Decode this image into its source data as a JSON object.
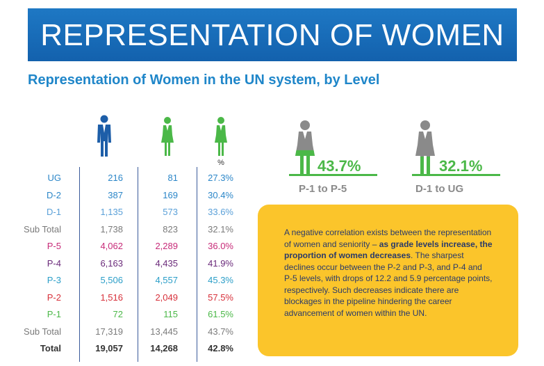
{
  "banner": {
    "title": "REPRESENTATION OF WOMEN"
  },
  "subtitle": "Representation of Women in the UN system, by Level",
  "chart_data": {
    "type": "table",
    "title": "Representation of Women in the UN system, by Level",
    "header": {
      "col3": "%"
    },
    "rows": [
      {
        "level": "UG",
        "men": "216",
        "women": "81",
        "pct": "27.3%",
        "color": "#2b86c8"
      },
      {
        "level": "D-2",
        "men": "387",
        "women": "169",
        "pct": "30.4%",
        "color": "#2b86c8"
      },
      {
        "level": "D-1",
        "men": "1,135",
        "women": "573",
        "pct": "33.6%",
        "color": "#5aa0d8"
      },
      {
        "level": "Sub Total",
        "men": "1,738",
        "women": "823",
        "pct": "32.1%",
        "color": "#7a7a7a"
      },
      {
        "level": "P-5",
        "men": "4,062",
        "women": "2,289",
        "pct": "36.0%",
        "color": "#c72a78"
      },
      {
        "level": "P-4",
        "men": "6,163",
        "women": "4,435",
        "pct": "41.9%",
        "color": "#6a2a7a"
      },
      {
        "level": "P-3",
        "men": "5,506",
        "women": "4,557",
        "pct": "45.3%",
        "color": "#2b9ec8"
      },
      {
        "level": "P-2",
        "men": "1,516",
        "women": "2,049",
        "pct": "57.5%",
        "color": "#d7303a"
      },
      {
        "level": "P-1",
        "men": "72",
        "women": "115",
        "pct": "61.5%",
        "color": "#4bb848"
      },
      {
        "level": "Sub Total",
        "men": "17,319",
        "women": "13,445",
        "pct": "43.7%",
        "color": "#7a7a7a"
      },
      {
        "level": "Total",
        "men": "19,057",
        "women": "14,268",
        "pct": "42.8%",
        "color": "#333333",
        "bold": true
      }
    ]
  },
  "highlights": [
    {
      "value": "43.7%",
      "label": "P-1 to P-5",
      "fill_fraction": 0.437
    },
    {
      "value": "32.1%",
      "label": "D-1 to UG",
      "fill_fraction": 0.321
    }
  ],
  "note": {
    "part1": "A negative correlation exists between the representation of women and seniority – ",
    "bold": "as grade levels increase, the proportion of women decreases",
    "part2": ". The sharpest declines occur between the P-2 and P-3, and P-4 and P-5 levels, with drops of 12.2 and 5.9 percentage points, respectively. Such decreases indicate there are blockages in the pipeline hindering the career advancement of women within the UN."
  },
  "colors": {
    "banner": "#1668b3",
    "accent_blue": "#1f86c9",
    "accent_green": "#4bb848",
    "note_bg": "#fbc52b",
    "man_icon": "#1d5ea8",
    "grey": "#8a8a8a"
  },
  "icons": [
    "man-icon",
    "woman-icon",
    "woman-percent-icon",
    "woman-gray-green-icon"
  ]
}
